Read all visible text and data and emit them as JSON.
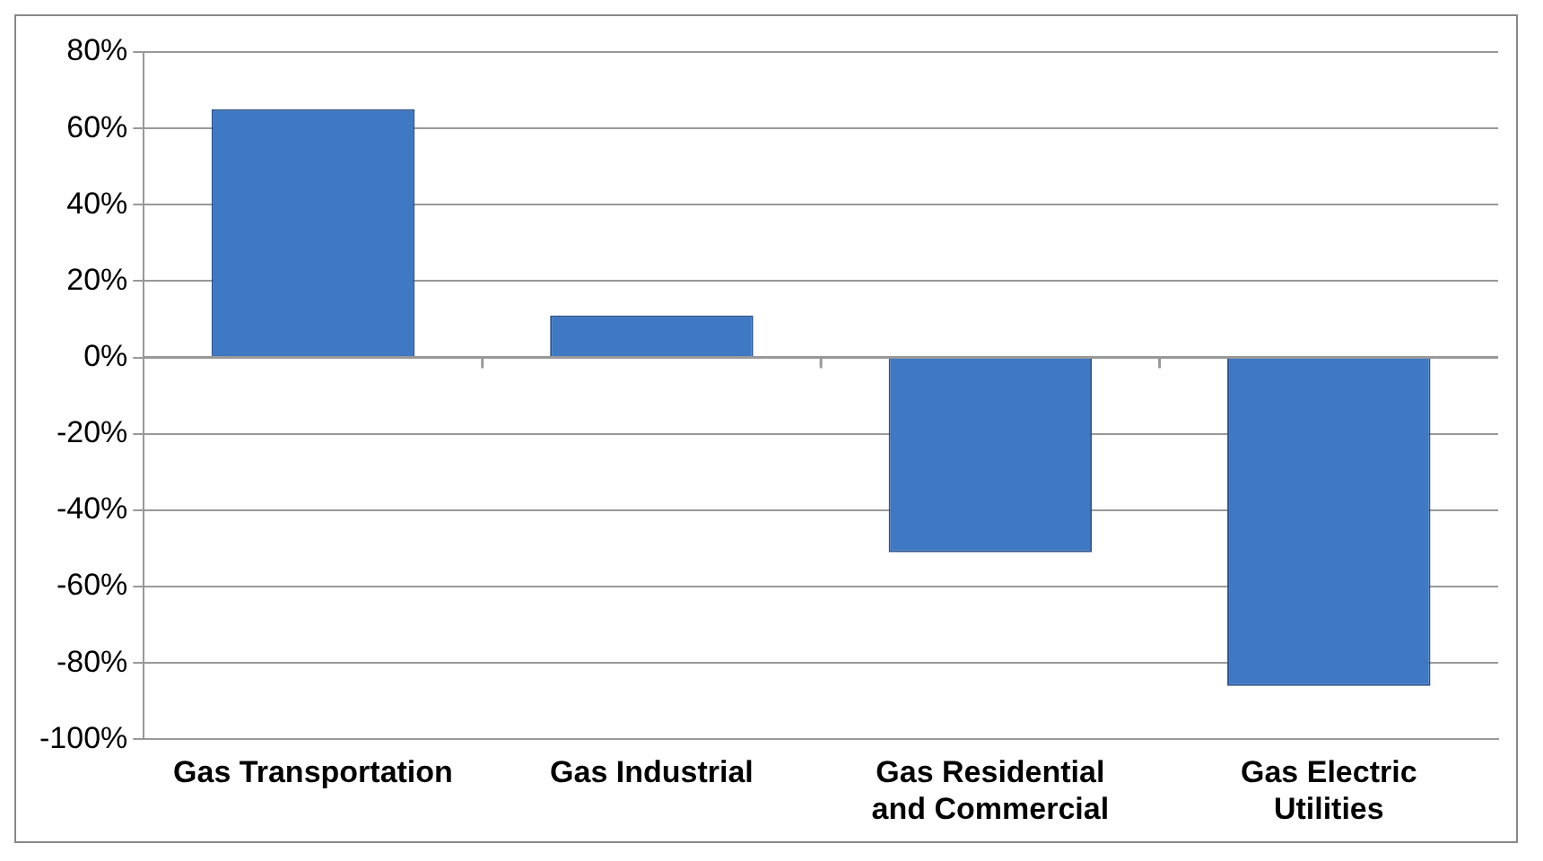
{
  "chart_data": {
    "type": "bar",
    "categories": [
      "Gas Transportation",
      "Gas Industrial",
      "Gas Residential and Commercial",
      "Gas Electric Utilities"
    ],
    "values": [
      65,
      11,
      -51,
      -86
    ],
    "color": "#3f78c3",
    "ylim": [
      -100,
      80
    ],
    "yticks": [
      {
        "value": -100,
        "label": "-100%"
      },
      {
        "value": -80,
        "label": "-80%"
      },
      {
        "value": -60,
        "label": "-60%"
      },
      {
        "value": -40,
        "label": "-40%"
      },
      {
        "value": -20,
        "label": "-20%"
      },
      {
        "value": 0,
        "label": "0%"
      },
      {
        "value": 20,
        "label": "20%"
      },
      {
        "value": 40,
        "label": "40%"
      },
      {
        "value": 60,
        "label": "60%"
      },
      {
        "value": 80,
        "label": "80%"
      }
    ],
    "grid": "y",
    "legend": false
  }
}
